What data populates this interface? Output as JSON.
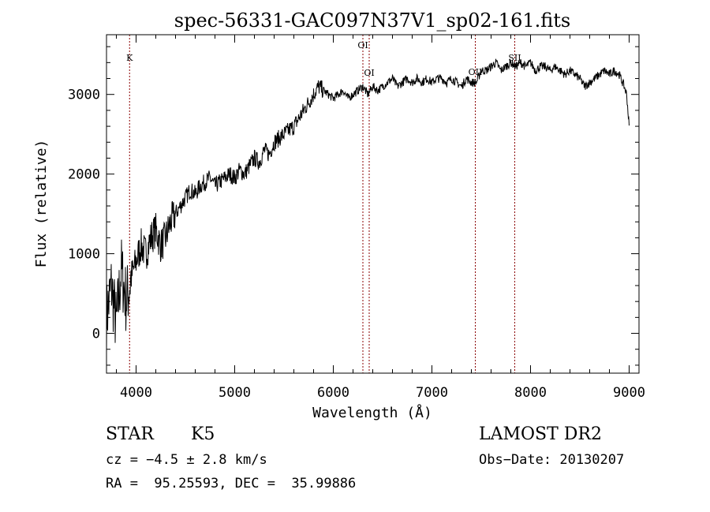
{
  "chart_data": {
    "type": "line",
    "title": "spec-56331-GAC097N37V1_sp02-161.fits",
    "xlabel": "Wavelength (Å)",
    "ylabel": "Flux (relative)",
    "xlim": [
      3700,
      9100
    ],
    "ylim": [
      -500,
      3750
    ],
    "xticks": [
      4000,
      5000,
      6000,
      7000,
      8000,
      9000
    ],
    "yticks": [
      0,
      1000,
      2000,
      3000
    ],
    "line_color": "#000000",
    "marker_color": "#8b0000",
    "series": [
      {
        "x": [
          3700,
          3750,
          3800,
          3850,
          3900,
          3950,
          4000,
          4050,
          4100,
          4150,
          4200,
          4250,
          4300,
          4350,
          4400,
          4450,
          4500,
          4550,
          4600,
          4650,
          4700,
          4750,
          4800,
          4850,
          4900,
          4950,
          5000,
          5050,
          5100,
          5150,
          5200,
          5250,
          5300,
          5350,
          5400,
          5450,
          5500,
          5550,
          5600,
          5650,
          5700,
          5750,
          5800,
          5850,
          5900,
          5950,
          6000,
          6050,
          6100,
          6150,
          6200,
          6250,
          6300,
          6350,
          6400,
          6450,
          6500,
          6550,
          6600,
          6650,
          6700,
          6750,
          6800,
          6850,
          6900,
          6950,
          7000,
          7050,
          7100,
          7150,
          7200,
          7250,
          7300,
          7350,
          7400,
          7450,
          7500,
          7550,
          7600,
          7650,
          7700,
          7750,
          7800,
          7850,
          7900,
          7950,
          8000,
          8050,
          8100,
          8150,
          8200,
          8250,
          8300,
          8350,
          8400,
          8450,
          8500,
          8550,
          8600,
          8650,
          8700,
          8750,
          8800,
          8850,
          8900,
          8950,
          8975,
          9000
        ],
        "y": [
          200,
          600,
          100,
          800,
          400,
          700,
          900,
          1100,
          1000,
          1200,
          1300,
          1100,
          1200,
          1400,
          1500,
          1600,
          1700,
          1800,
          1750,
          1850,
          1900,
          1950,
          1850,
          1900,
          1950,
          2000,
          1950,
          2050,
          2000,
          2100,
          2200,
          2150,
          2300,
          2250,
          2400,
          2450,
          2500,
          2550,
          2600,
          2700,
          2800,
          2900,
          3000,
          3100,
          3050,
          3000,
          2950,
          3000,
          3050,
          2950,
          3000,
          3050,
          3100,
          3000,
          3100,
          3050,
          3100,
          3150,
          3200,
          3100,
          3150,
          3200,
          3150,
          3200,
          3150,
          3200,
          3150,
          3200,
          3200,
          3150,
          3200,
          3150,
          3100,
          3200,
          3150,
          3150,
          3300,
          3300,
          3350,
          3400,
          3300,
          3350,
          3400,
          3350,
          3400,
          3350,
          3400,
          3300,
          3350,
          3350,
          3300,
          3350,
          3300,
          3250,
          3300,
          3250,
          3200,
          3100,
          3150,
          3200,
          3250,
          3300,
          3250,
          3300,
          3250,
          3100,
          3000,
          2600
        ]
      }
    ],
    "line_markers": [
      {
        "label": "K",
        "x": 3934
      },
      {
        "label": "OI",
        "x": 6300
      },
      {
        "label": "OI",
        "x": 6364
      },
      {
        "label": "OII",
        "x": 7440
      },
      {
        "label": "SII",
        "x": 7840
      }
    ]
  },
  "info": {
    "object_class": "STAR",
    "subclass": "K5",
    "survey": "LAMOST DR2",
    "cz": "cz = −4.5 ± 2.8 km/s",
    "obs_date": "Obs−Date: 20130207",
    "coords": "RA =  95.25593, DEC =  35.99886"
  }
}
